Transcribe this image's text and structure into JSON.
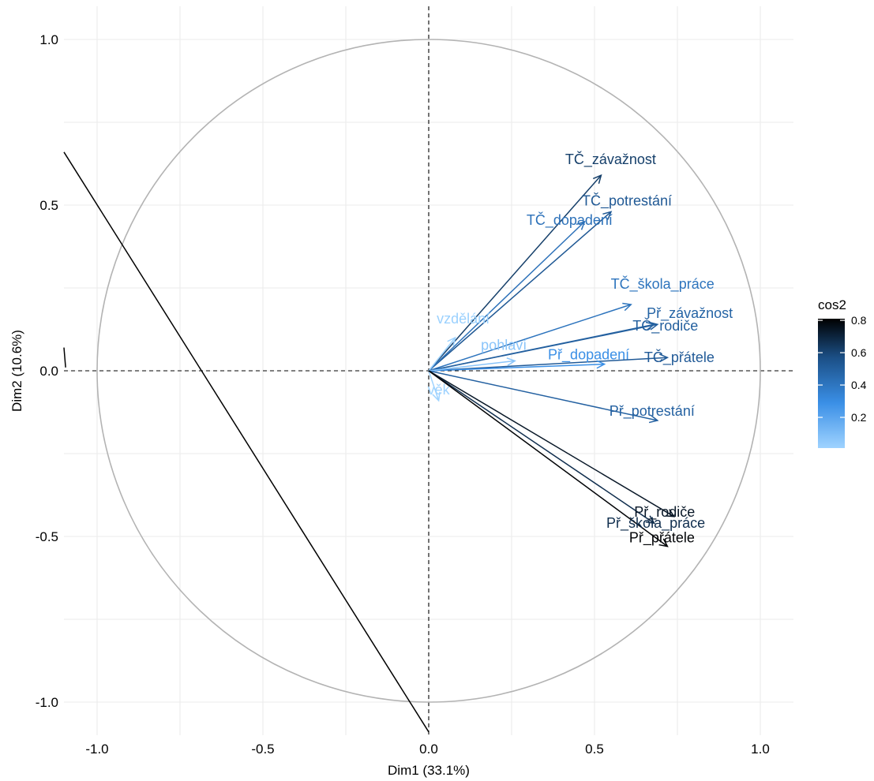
{
  "chart_data": {
    "type": "scatter",
    "subtype": "pca-variable-correlation-circle",
    "title": "",
    "xlabel": "Dim1 (33.1%)",
    "ylabel": "Dim2 (10.6%)",
    "xlim": [
      -1.1,
      1.1
    ],
    "ylim": [
      -1.1,
      1.1
    ],
    "xticks": [
      -1.0,
      -0.5,
      0.0,
      0.5,
      1.0
    ],
    "yticks": [
      -1.0,
      -0.5,
      0.0,
      0.5,
      1.0
    ],
    "xtick_labels": [
      "-1.0",
      "-0.5",
      "0.0",
      "0.5",
      "1.0"
    ],
    "ytick_labels": [
      "-1.0",
      "-0.5",
      "0.0",
      "0.5",
      "1.0"
    ],
    "grid": true,
    "unit_circle": true,
    "legend": {
      "title": "cos2",
      "position": "right",
      "ticks": [
        "0.8",
        "0.6",
        "0.4",
        "0.2"
      ],
      "tick_values": [
        0.8,
        0.6,
        0.4,
        0.2
      ],
      "range": [
        0.01,
        0.81
      ],
      "colors_low_to_high": [
        "#9fd3ff",
        "#3a8fe6",
        "#1b4f86",
        "#000000"
      ]
    },
    "variables": [
      {
        "name": "TČ_závažnost",
        "x": 0.52,
        "y": 0.59,
        "cos2": 0.62
      },
      {
        "name": "TČ_potrestání",
        "x": 0.55,
        "y": 0.48,
        "cos2": 0.53
      },
      {
        "name": "TČ_dopadení",
        "x": 0.47,
        "y": 0.45,
        "cos2": 0.42
      },
      {
        "name": "TČ_škola_práce",
        "x": 0.61,
        "y": 0.2,
        "cos2": 0.41
      },
      {
        "name": "Př_závažnost",
        "x": 0.68,
        "y": 0.14,
        "cos2": 0.48
      },
      {
        "name": "TČ_rodiče",
        "x": 0.69,
        "y": 0.14,
        "cos2": 0.5
      },
      {
        "name": "TČ_přátele",
        "x": 0.72,
        "y": 0.04,
        "cos2": 0.52
      },
      {
        "name": "Př_dopadení",
        "x": 0.53,
        "y": 0.02,
        "cos2": 0.29
      },
      {
        "name": "pohlaví",
        "x": 0.26,
        "y": 0.03,
        "cos2": 0.07
      },
      {
        "name": "vzdělání",
        "x": 0.08,
        "y": 0.1,
        "cos2": 0.02
      },
      {
        "name": "věk",
        "x": 0.03,
        "y": -0.09,
        "cos2": 0.01
      },
      {
        "name": "Př_potrestání",
        "x": 0.69,
        "y": -0.15,
        "cos2": 0.49
      },
      {
        "name": "Př_rodiče",
        "x": 0.74,
        "y": -0.44,
        "cos2": 0.74
      },
      {
        "name": "Př_škola_práce",
        "x": 0.68,
        "y": -0.46,
        "cos2": 0.67
      },
      {
        "name": "Př_přátele",
        "x": 0.72,
        "y": -0.53,
        "cos2": 0.8
      }
    ]
  }
}
